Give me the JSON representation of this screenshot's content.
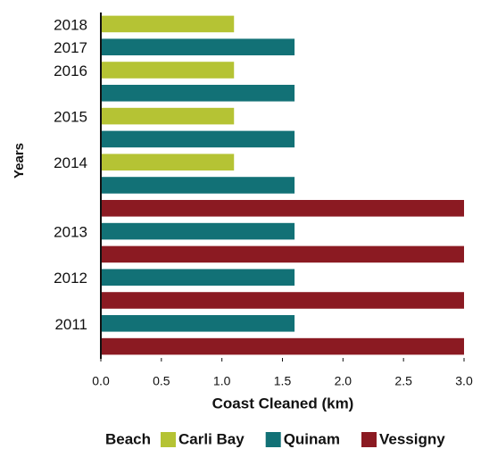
{
  "chart_data": {
    "type": "bar",
    "orientation": "horizontal",
    "categories": [
      "2018",
      "2017",
      "2016",
      null,
      "2015",
      null,
      "2014",
      null,
      null,
      "2013",
      null,
      "2012",
      null,
      "2011",
      null
    ],
    "series": [
      {
        "name": "Carli Bay",
        "color": "#b5c334",
        "values": [
          1.1,
          null,
          1.1,
          null,
          1.1,
          null,
          1.1,
          null,
          null,
          null,
          null,
          null,
          null,
          null,
          null
        ]
      },
      {
        "name": "Quinam",
        "color": "#127176",
        "values": [
          null,
          1.6,
          null,
          1.6,
          null,
          1.6,
          null,
          1.6,
          null,
          1.6,
          null,
          1.6,
          null,
          1.6,
          null
        ]
      },
      {
        "name": "Vessigny",
        "color": "#8b1a22",
        "values": [
          null,
          null,
          null,
          null,
          null,
          null,
          null,
          null,
          3,
          null,
          3,
          null,
          3,
          null,
          3
        ]
      }
    ],
    "xlabel": "Coast Cleaned (km)",
    "ylabel": "Years",
    "legend_title": "Beach",
    "legend": "bottom",
    "xlim": [
      0,
      3
    ],
    "xticks": [
      {
        "value": 0,
        "label": "0.0"
      },
      0.5,
      {
        "value": 1,
        "label": "1.0"
      },
      1.5,
      {
        "value": 2,
        "label": "2.0"
      },
      2.5,
      {
        "value": 3,
        "label": "3.0"
      }
    ]
  }
}
